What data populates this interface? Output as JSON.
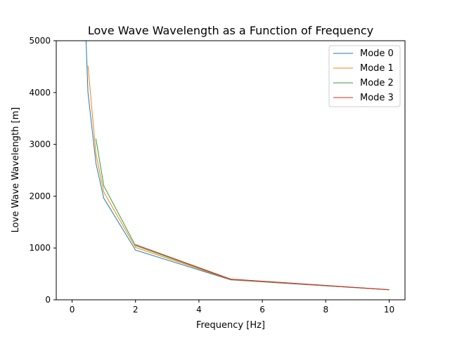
{
  "chart_data": {
    "type": "line",
    "title": "Love Wave Wavelength as a Function of Frequency",
    "xlabel": "Frequency [Hz]",
    "ylabel": "Love Wave Wavelength [m]",
    "xlim": [
      -0.5,
      10.5
    ],
    "ylim": [
      0,
      5000
    ],
    "xticks": [
      0,
      2,
      4,
      6,
      8,
      10
    ],
    "yticks": [
      0,
      1000,
      2000,
      3000,
      4000,
      5000
    ],
    "grid": false,
    "legend_position": "top-right",
    "series": [
      {
        "name": "Mode 0",
        "color": "#1f77b4",
        "points": [
          [
            0.44,
            5000
          ],
          [
            0.5,
            4000
          ],
          [
            0.75,
            2640
          ],
          [
            1,
            1960
          ],
          [
            2,
            960
          ],
          [
            5,
            385
          ],
          [
            10,
            192
          ]
        ]
      },
      {
        "name": "Mode 1",
        "color": "#ff7f0e",
        "points": [
          [
            0.5,
            4520
          ],
          [
            0.75,
            2820
          ],
          [
            1,
            2080
          ],
          [
            2,
            1010
          ],
          [
            5,
            390
          ],
          [
            10,
            193
          ]
        ]
      },
      {
        "name": "Mode 2",
        "color": "#2ca02c",
        "points": [
          [
            0.75,
            3110
          ],
          [
            1,
            2200
          ],
          [
            2,
            1045
          ],
          [
            5,
            395
          ],
          [
            10,
            194
          ]
        ]
      },
      {
        "name": "Mode 3",
        "color": "#d62728",
        "points": [
          [
            2,
            1065
          ],
          [
            5,
            400
          ],
          [
            10,
            195
          ]
        ]
      }
    ]
  }
}
